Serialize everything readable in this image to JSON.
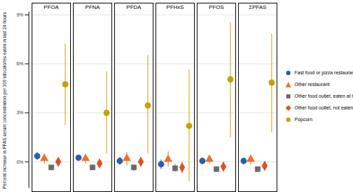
{
  "chart_data": {
    "type": "scatter",
    "y_label": "Percent increase in PFAS serum concentration per 100 kilocalories eaten in last 24 hours",
    "categories": [
      "PFOA",
      "PFNA",
      "PFDA",
      "PFHxS",
      "PFOS",
      "ΣPFAS"
    ],
    "ylim": [
      -1.6,
      9.2
    ],
    "yticks": [
      {
        "value": 0,
        "label": "0%"
      },
      {
        "value": 3,
        "label": "3%"
      },
      {
        "value": 6,
        "label": "6%"
      },
      {
        "value": 9,
        "label": "9%"
      }
    ],
    "grid": true,
    "series": [
      {
        "name": "Fast food or pizza restaurant",
        "color": "#2a5db0",
        "marker": "circle",
        "values": [
          0.35,
          0.25,
          0.05,
          -0.15,
          0.05,
          0.05
        ],
        "ci_low": [
          0.1,
          0.05,
          -0.2,
          -0.45,
          -0.15,
          -0.15
        ],
        "ci_high": [
          0.6,
          0.45,
          0.3,
          0.15,
          0.25,
          0.25
        ]
      },
      {
        "name": "Other restaurant",
        "color": "#f07020",
        "marker": "triangle",
        "values": [
          0.2,
          0.2,
          0.2,
          0.15,
          0.15,
          0.15
        ],
        "ci_low": [
          -0.1,
          -0.1,
          -0.2,
          -0.3,
          -0.1,
          -0.15
        ],
        "ci_high": [
          0.5,
          0.5,
          0.6,
          0.65,
          0.4,
          0.4
        ]
      },
      {
        "name": "Other food outlet, eaten at home",
        "color": "#6b6b6b",
        "marker": "square",
        "values": [
          -0.35,
          -0.35,
          -0.35,
          -0.4,
          -0.45,
          -0.45
        ],
        "ci_low": [
          -0.5,
          -0.5,
          -0.55,
          -0.6,
          -0.6,
          -0.6
        ],
        "ci_high": [
          -0.2,
          -0.2,
          -0.2,
          -0.15,
          -0.3,
          -0.3
        ]
      },
      {
        "name": "Other food outlet, not eaten at home",
        "color": "#e0501e",
        "marker": "diamond",
        "values": [
          0,
          -0.1,
          0,
          -0.35,
          -0.3,
          -0.25
        ],
        "ci_low": [
          -0.3,
          -0.35,
          -0.25,
          -0.7,
          -0.55,
          -0.45
        ],
        "ci_high": [
          0.25,
          0.15,
          0.3,
          0,
          0,
          0
        ]
      },
      {
        "name": "Popcorn",
        "color": "#c8a000",
        "marker": "circle",
        "values": [
          4.75,
          3.0,
          3.45,
          2.2,
          5.05,
          4.85
        ],
        "ci_low": [
          2.25,
          0.5,
          0.5,
          -1.2,
          1.5,
          1.8
        ],
        "ci_high": [
          7.25,
          5.55,
          6.55,
          5.65,
          8.55,
          7.85
        ]
      }
    ]
  }
}
